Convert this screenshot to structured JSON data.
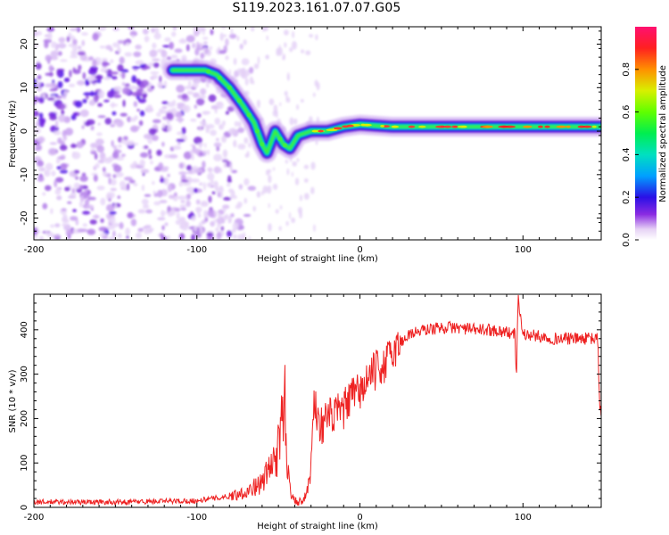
{
  "title": "S119.2023.161.07.07.G05",
  "chart_data": [
    {
      "type": "heatmap",
      "xlabel": "Height of straight line (km)",
      "ylabel": "Frequency (Hz)",
      "xlim": [
        -200,
        148
      ],
      "ylim": [
        -25,
        24
      ],
      "xticks": [
        -200,
        -100,
        0,
        100
      ],
      "yticks": [
        -20,
        -10,
        0,
        10,
        20
      ],
      "colorbar": {
        "label": "Normalized spectral amplitude",
        "range": [
          0,
          1
        ],
        "ticks": [
          0.0,
          0.2,
          0.4,
          0.6,
          0.8
        ]
      },
      "ridge": {
        "x": [
          -115,
          -105,
          -95,
          -88,
          -80,
          -72,
          -65,
          -60,
          -57,
          -52,
          -47,
          -43,
          -38,
          -30,
          -20,
          -10,
          0,
          20,
          60,
          100,
          148
        ],
        "frequency": [
          14,
          14,
          14,
          13,
          10,
          6,
          2,
          -3,
          -5,
          0,
          -3,
          -4,
          -1,
          0,
          0,
          1,
          1.5,
          1,
          1,
          1,
          1
        ]
      },
      "noise_region": [
        -200,
        -85
      ]
    },
    {
      "type": "line",
      "xlabel": "Height of straight line (km)",
      "ylabel": "SNR (10 * v/v)",
      "xlim": [
        -200,
        148
      ],
      "ylim": [
        0,
        480
      ],
      "xticks": [
        -200,
        -100,
        0,
        100
      ],
      "yticks": [
        0,
        100,
        200,
        300,
        400
      ],
      "line_color": "#ee2222",
      "series": [
        {
          "x": [
            -200,
            -150,
            -100,
            -80,
            -70,
            -60,
            -55,
            -50,
            -46,
            -44,
            -42,
            -38,
            -33,
            -30,
            -28,
            -25,
            -20,
            -10,
            -5,
            0,
            5,
            10,
            15,
            20,
            25,
            30,
            40,
            50,
            60,
            70,
            80,
            90,
            95,
            96,
            97,
            100,
            110,
            120,
            130,
            140,
            145,
            146,
            147,
            148
          ],
          "values": [
            12,
            12,
            15,
            25,
            35,
            55,
            90,
            130,
            240,
            70,
            30,
            10,
            25,
            90,
            250,
            180,
            200,
            220,
            250,
            260,
            290,
            310,
            320,
            350,
            370,
            390,
            400,
            405,
            405,
            400,
            400,
            395,
            390,
            300,
            470,
            390,
            385,
            380,
            380,
            380,
            380,
            380,
            220,
            215
          ]
        }
      ]
    }
  ]
}
